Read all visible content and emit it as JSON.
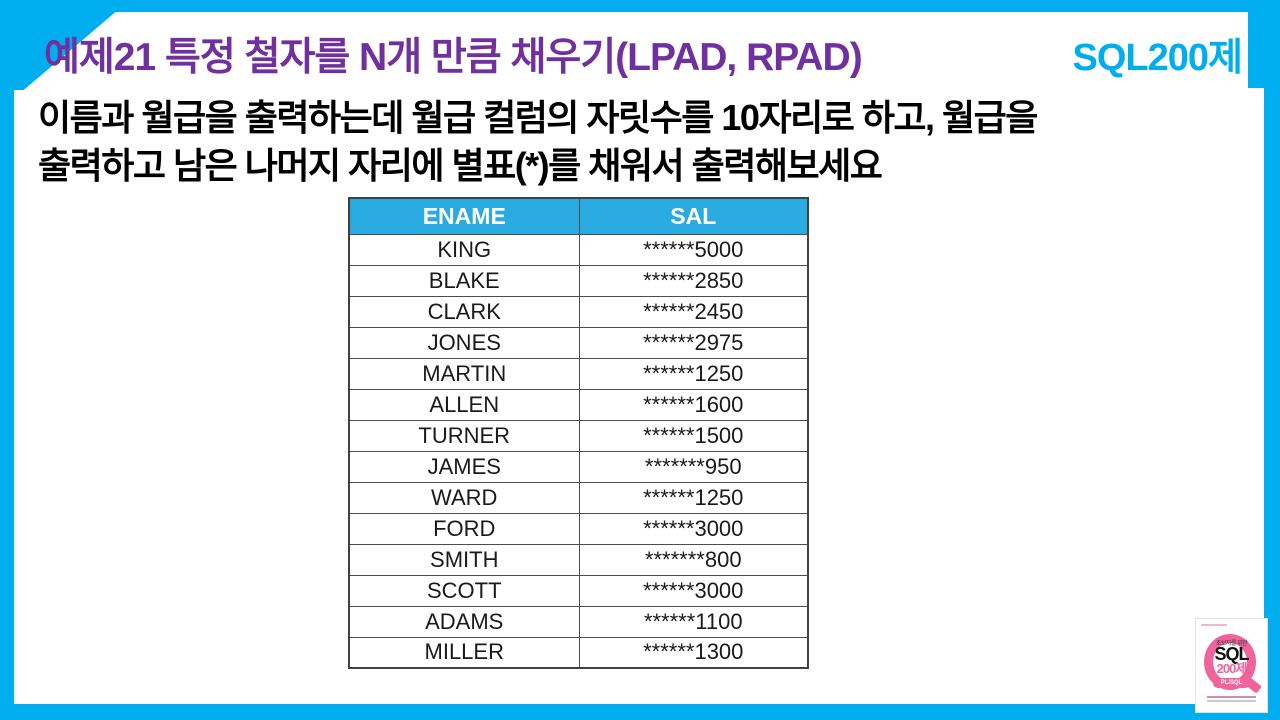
{
  "slide": {
    "header": {
      "title": "예제21  특정 철자를 N개 만큼 채우기(LPAD, RPAD)",
      "brand": "SQL200제"
    },
    "problem": {
      "line1": "이름과 월급을 출력하는데 월급 컬럼의 자릿수를 10자리로 하고, 월급을",
      "line2": "출력하고 남은 나머지 자리에 별표(*)를 채워서 출력해보세요"
    },
    "colors": {
      "frame_cyan": "#00AEF0",
      "table_header_cyan": "#29ABE2",
      "title_purple": "#7030A0",
      "logo_pink": "#F0649B"
    }
  },
  "table": {
    "columns": [
      "ENAME",
      "SAL"
    ],
    "rows": [
      [
        "KING",
        "******5000"
      ],
      [
        "BLAKE",
        "******2850"
      ],
      [
        "CLARK",
        "******2450"
      ],
      [
        "JONES",
        "******2975"
      ],
      [
        "MARTIN",
        "******1250"
      ],
      [
        "ALLEN",
        "******1600"
      ],
      [
        "TURNER",
        "******1500"
      ],
      [
        "JAMES",
        "*******950"
      ],
      [
        "WARD",
        "******1250"
      ],
      [
        "FORD",
        "******3000"
      ],
      [
        "SMITH",
        "*******800"
      ],
      [
        "SCOTT",
        "******3000"
      ],
      [
        "ADAMS",
        "******1100"
      ],
      [
        "MILLER",
        "******1300"
      ]
    ]
  },
  "logo": {
    "top_text": "초보자를 위한",
    "title": "SQL",
    "subtitle": "200제",
    "badge": "PL/SQL"
  }
}
